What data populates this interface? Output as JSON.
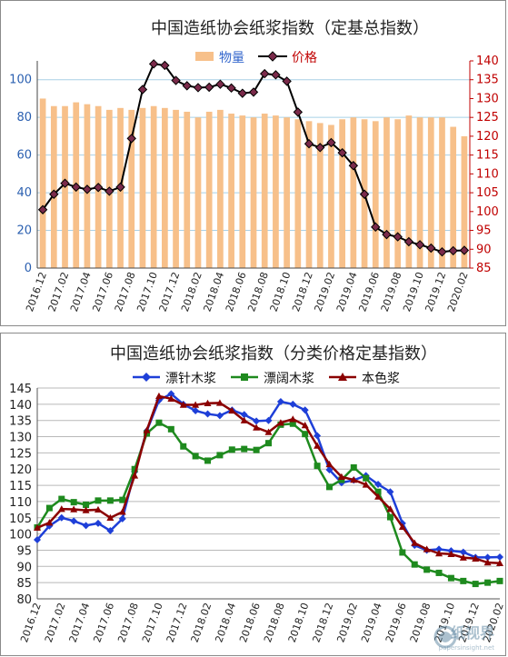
{
  "chart_data": [
    {
      "type": "bar+line",
      "title": "中国造纸协会纸浆指数（定基总指数）",
      "legend": [
        {
          "name": "物量",
          "color": "#f7c08a",
          "text_color": "#3366cc",
          "marker": "bar"
        },
        {
          "name": "价格",
          "color": "#000000",
          "text_color": "#c00000",
          "marker": "diamond"
        }
      ],
      "categories": [
        "2016.12",
        "2017.01",
        "2017.02",
        "2017.03",
        "2017.04",
        "2017.05",
        "2017.06",
        "2017.07",
        "2017.08",
        "2017.09",
        "2017.10",
        "2017.11",
        "2017.12",
        "2018.01",
        "2018.02",
        "2018.03",
        "2018.04",
        "2018.05",
        "2018.06",
        "2018.07",
        "2018.08",
        "2018.09",
        "2018.10",
        "2018.11",
        "2018.12",
        "2019.01",
        "2019.02",
        "2019.03",
        "2019.04",
        "2019.05",
        "2019.06",
        "2019.07",
        "2019.08",
        "2019.09",
        "2019.10",
        "2019.11",
        "2019.12",
        "2020.01",
        "2020.02"
      ],
      "x_tick_labels": [
        "2016.12",
        "2017.02",
        "2017.04",
        "2017.06",
        "2017.08",
        "2017.10",
        "2017.12",
        "2018.02",
        "2018.04",
        "2018.06",
        "2018.08",
        "2018.10",
        "2018.12",
        "2019.02",
        "2019.04",
        "2019.06",
        "2019.08",
        "2019.10",
        "2019.12",
        "2020.02"
      ],
      "series": [
        {
          "name": "物量",
          "axis": "left",
          "values": [
            90,
            86,
            86,
            88,
            87,
            86,
            84,
            85,
            84,
            85,
            86,
            85,
            84,
            83,
            80,
            83,
            84,
            82,
            81,
            80,
            82,
            81,
            80,
            79,
            78,
            77,
            76,
            79,
            80,
            79,
            78,
            80,
            79,
            81,
            80,
            80,
            80,
            75,
            70
          ]
        },
        {
          "name": "价格",
          "axis": "right",
          "values": [
            100.5,
            104.6,
            107.5,
            106.5,
            105.9,
            106.4,
            105.4,
            106.5,
            119.4,
            132.4,
            139.2,
            138.8,
            134.8,
            133.4,
            132.9,
            133.0,
            133.8,
            132.8,
            131.4,
            131.7,
            136.6,
            136.3,
            134.6,
            126.4,
            118.0,
            117.0,
            118.3,
            115.6,
            112.2,
            104.6,
            95.9,
            93.9,
            93.3,
            92.0,
            91.2,
            90.3,
            89.3,
            89.6,
            89.7
          ]
        }
      ],
      "ylim_left": [
        0,
        110
      ],
      "yticks_left": [
        "0",
        "20",
        "40",
        "60",
        "80",
        "100"
      ],
      "ylim_right": [
        85,
        140
      ],
      "yticks_right": [
        "85",
        "90",
        "95",
        "100",
        "105",
        "110",
        "115",
        "120",
        "125",
        "130",
        "135",
        "140"
      ],
      "grid": true
    },
    {
      "type": "line",
      "title": "中国造纸协会纸浆指数（分类价格定基指数）",
      "legend": [
        {
          "name": "漂针木浆",
          "color": "#1e3fd8",
          "marker": "diamond"
        },
        {
          "name": "漂阔木浆",
          "color": "#1e8a1e",
          "marker": "square"
        },
        {
          "name": "本色浆",
          "color": "#8b0000",
          "marker": "triangle"
        }
      ],
      "categories": [
        "2016.12",
        "2017.01",
        "2017.02",
        "2017.03",
        "2017.04",
        "2017.05",
        "2017.06",
        "2017.07",
        "2017.08",
        "2017.09",
        "2017.10",
        "2017.11",
        "2017.12",
        "2018.01",
        "2018.02",
        "2018.03",
        "2018.04",
        "2018.05",
        "2018.06",
        "2018.07",
        "2018.08",
        "2018.09",
        "2018.10",
        "2018.11",
        "2018.12",
        "2019.01",
        "2019.02",
        "2019.03",
        "2019.04",
        "2019.05",
        "2019.06",
        "2019.07",
        "2019.08",
        "2019.09",
        "2019.10",
        "2019.11",
        "2019.12",
        "2020.01",
        "2020.02"
      ],
      "x_tick_labels": [
        "2016.12",
        "2017.02",
        "2017.04",
        "2017.06",
        "2017.08",
        "2017.10",
        "2017.12",
        "2018.02",
        "2018.04",
        "2018.06",
        "2018.08",
        "2018.10",
        "2018.12",
        "2019.02",
        "2019.04",
        "2019.06",
        "2019.08",
        "2019.10",
        "2019.12",
        "2020.02"
      ],
      "series": [
        {
          "name": "漂针木浆",
          "values": [
            98.2,
            102.5,
            105.0,
            104.0,
            102.6,
            103.3,
            101.0,
            104.7,
            119.2,
            131.8,
            141.2,
            143.2,
            140.0,
            138.0,
            137.0,
            136.5,
            138.2,
            136.8,
            134.8,
            135.0,
            140.8,
            140.0,
            138.2,
            130.3,
            119.8,
            115.8,
            116.6,
            118.0,
            115.3,
            113.0,
            103.3,
            96.5,
            95.0,
            95.3,
            94.8,
            94.4,
            92.8,
            92.8,
            92.9
          ]
        },
        {
          "name": "漂阔木浆",
          "values": [
            102.0,
            108.0,
            110.8,
            109.8,
            109.0,
            110.3,
            110.3,
            110.5,
            120.0,
            131.0,
            134.3,
            132.3,
            127.0,
            124.0,
            122.6,
            124.3,
            126.0,
            126.2,
            125.9,
            128.0,
            133.7,
            134.0,
            130.8,
            121.0,
            114.5,
            116.7,
            120.5,
            117.2,
            113.0,
            105.2,
            94.3,
            90.6,
            89.0,
            88.0,
            86.4,
            85.5,
            84.6,
            85.0,
            85.5
          ]
        },
        {
          "name": "本色浆",
          "values": [
            101.9,
            103.5,
            107.7,
            107.6,
            107.3,
            107.5,
            105.0,
            106.8,
            118.0,
            132.0,
            142.5,
            141.7,
            139.8,
            139.8,
            140.3,
            140.4,
            138.0,
            135.0,
            132.8,
            131.4,
            134.3,
            135.4,
            133.5,
            127.2,
            121.5,
            117.6,
            116.7,
            115.2,
            111.5,
            107.7,
            102.2,
            97.2,
            95.3,
            94.0,
            93.8,
            92.7,
            92.4,
            91.2,
            91.0
          ]
        }
      ],
      "ylim": [
        80,
        145
      ],
      "yticks": [
        "80",
        "85",
        "90",
        "95",
        "100",
        "105",
        "110",
        "115",
        "120",
        "125",
        "130",
        "135",
        "140",
        "145"
      ],
      "grid": true
    }
  ],
  "watermark": {
    "text": "纸视界",
    "url": "papersinsight.net"
  }
}
